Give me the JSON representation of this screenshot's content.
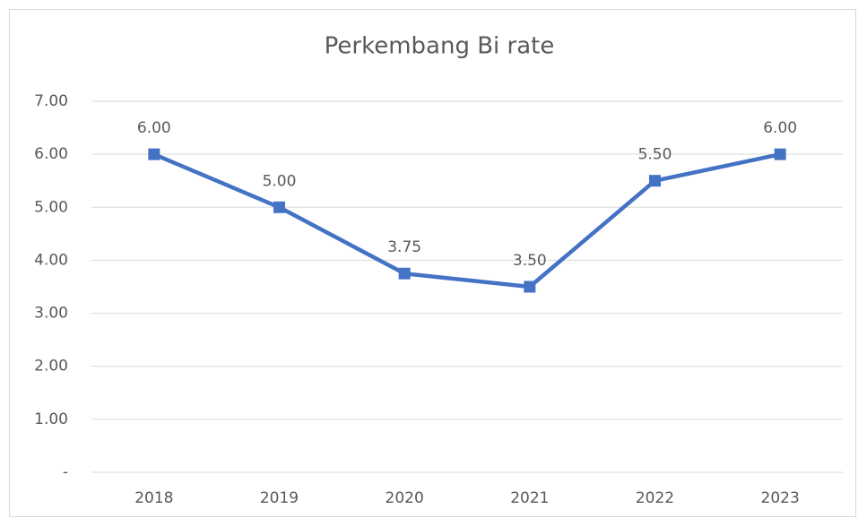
{
  "chart_data": {
    "type": "line",
    "title": "Perkembang Bi rate",
    "categories": [
      "2018",
      "2019",
      "2020",
      "2021",
      "2022",
      "2023"
    ],
    "series": [
      {
        "name": "Bi rate",
        "color": "#4472c4",
        "values": [
          6,
          5,
          3.75,
          3.5,
          5.5,
          6
        ],
        "value_labels": [
          "6.00",
          "5.00",
          "3.75",
          "3.50",
          "5.50",
          "6.00"
        ]
      }
    ],
    "ylim": [
      0,
      7
    ],
    "yticks": [
      {
        "value": 0,
        "label": "-"
      },
      {
        "value": 1,
        "label": "1.00"
      },
      {
        "value": 2,
        "label": "2.00"
      },
      {
        "value": 3,
        "label": "3.00"
      },
      {
        "value": 4,
        "label": "4.00"
      },
      {
        "value": 5,
        "label": "5.00"
      },
      {
        "value": 6,
        "label": "6.00"
      },
      {
        "value": 7,
        "label": "7.00"
      }
    ],
    "grid": true
  }
}
